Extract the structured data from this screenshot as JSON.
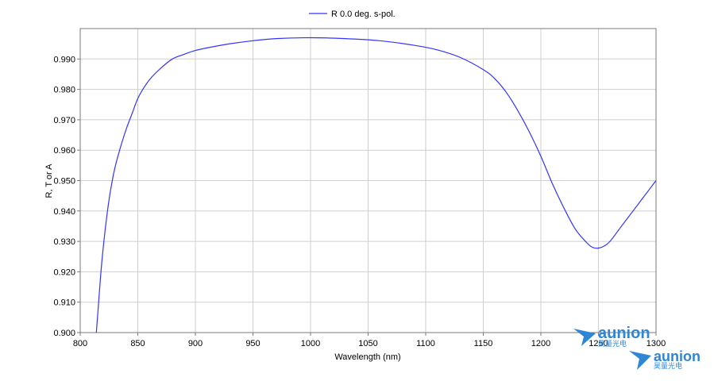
{
  "chart_data": {
    "type": "line",
    "title": "",
    "xlabel": "Wavelength (nm)",
    "ylabel": "R, T or A",
    "xlim": [
      800,
      1300
    ],
    "ylim": [
      0.9,
      1.0
    ],
    "x_ticks": [
      "800",
      "850",
      "900",
      "950",
      "1000",
      "1050",
      "1100",
      "1150",
      "1200",
      "1250",
      "1300"
    ],
    "y_ticks": [
      "0.900",
      "0.910",
      "0.920",
      "0.930",
      "0.940",
      "0.950",
      "0.960",
      "0.970",
      "0.980",
      "0.990"
    ],
    "grid": true,
    "legend_position": "top-center",
    "series": [
      {
        "name": "R 0.0 deg. s-pol.",
        "color": "#3333ff",
        "x": [
          814,
          816,
          818,
          820,
          823,
          826,
          830,
          835,
          840,
          845,
          850,
          856,
          862,
          870,
          880,
          890,
          900,
          915,
          930,
          950,
          970,
          1000,
          1030,
          1060,
          1090,
          1110,
          1130,
          1150,
          1160,
          1170,
          1180,
          1190,
          1200,
          1210,
          1220,
          1230,
          1240,
          1245,
          1250,
          1255,
          1260,
          1270,
          1280,
          1290,
          1300
        ],
        "y": [
          0.9,
          0.91,
          0.92,
          0.928,
          0.938,
          0.946,
          0.954,
          0.961,
          0.967,
          0.972,
          0.977,
          0.981,
          0.984,
          0.987,
          0.99,
          0.9915,
          0.9928,
          0.994,
          0.995,
          0.996,
          0.9967,
          0.997,
          0.9967,
          0.996,
          0.9945,
          0.993,
          0.9905,
          0.9865,
          0.9835,
          0.979,
          0.973,
          0.966,
          0.958,
          0.949,
          0.941,
          0.934,
          0.9295,
          0.928,
          0.9278,
          0.9285,
          0.93,
          0.935,
          0.94,
          0.945,
          0.95
        ]
      }
    ]
  },
  "watermark": {
    "brand": "aunion",
    "chinese": "昊量光电",
    "color": "#2f86d6"
  }
}
